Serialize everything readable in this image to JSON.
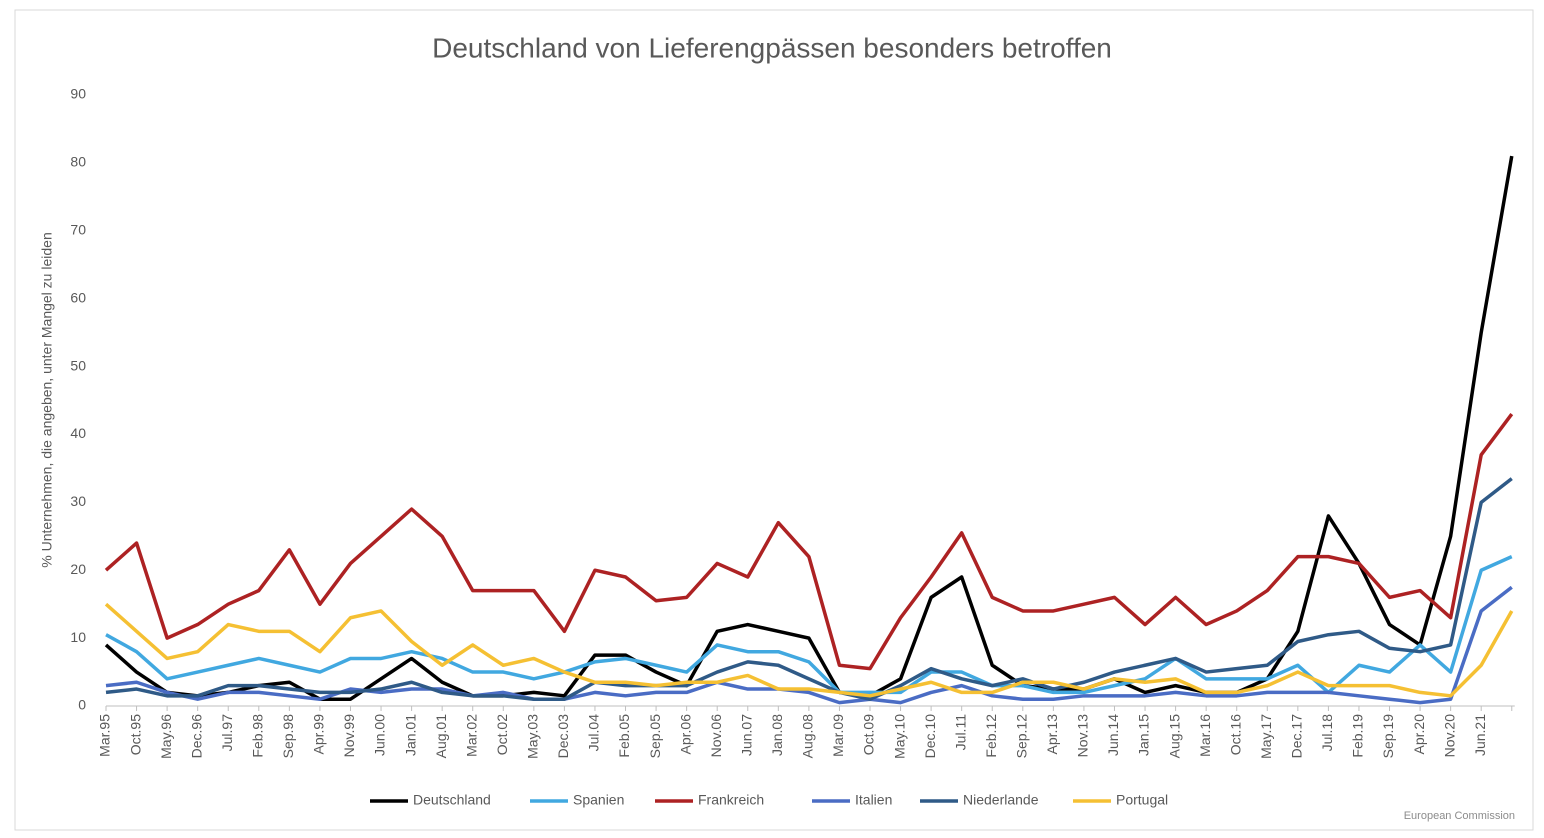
{
  "chart_data": {
    "type": "line",
    "title": "Deutschland von Lieferengpässen besonders betroffen",
    "y_label": "% Unternehmen, die angeben, unter Mangel zu leiden",
    "source": "European Commission",
    "categories": [
      "Mar.95",
      "Oct.95",
      "May.96",
      "Dec.96",
      "Jul.97",
      "Feb.98",
      "Sep.98",
      "Apr.99",
      "Nov.99",
      "Jun.00",
      "Jan.01",
      "Aug.01",
      "Mar.02",
      "Oct.02",
      "May.03",
      "Dec.03",
      "Jul.04",
      "Feb.05",
      "Sep.05",
      "Apr.06",
      "Nov.06",
      "Jun.07",
      "Jan.08",
      "Aug.08",
      "Mar.09",
      "Oct.09",
      "May.10",
      "Dec.10",
      "Jul.11",
      "Feb.12",
      "Sep.12",
      "Apr.13",
      "Nov.13",
      "Jun.14",
      "Jan.15",
      "Aug.15",
      "Mar.16",
      "Oct.16",
      "May.17",
      "Dec.17",
      "Jul.18",
      "Feb.19",
      "Sep.19",
      "Apr.20",
      "Nov.20",
      "Jun.21",
      null
    ],
    "ylim": [
      0,
      90
    ],
    "yticks": [
      0,
      10,
      20,
      30,
      40,
      50,
      60,
      70,
      80,
      90
    ],
    "legend": "bottom",
    "series": [
      {
        "name": "Deutschland",
        "color": "#000000",
        "values": [
          9,
          5,
          2,
          1.5,
          2,
          3,
          3.5,
          1,
          1,
          4,
          7,
          3.5,
          1.5,
          1.5,
          2,
          1.5,
          7.5,
          7.5,
          5,
          3,
          11,
          12,
          11,
          10,
          2,
          1.5,
          4,
          16,
          19,
          6,
          3,
          2.5,
          2.5,
          4,
          2,
          3,
          2,
          2,
          4,
          11,
          28,
          21,
          12,
          9,
          25,
          55,
          81
        ]
      },
      {
        "name": "Spanien",
        "color": "#41a8e0",
        "values": [
          10.5,
          8,
          4,
          5,
          6,
          7,
          6,
          5,
          7,
          7,
          8,
          7,
          5,
          5,
          4,
          5,
          6.5,
          7,
          6,
          5,
          9,
          8,
          8,
          6.5,
          2,
          2,
          2,
          5,
          5,
          3,
          3,
          2,
          2,
          3,
          4,
          7,
          4,
          4,
          4,
          6,
          2,
          6,
          5,
          9,
          5,
          20,
          22
        ]
      },
      {
        "name": "Frankreich",
        "color": "#ad2223",
        "values": [
          20,
          24,
          10,
          12,
          15,
          17,
          23,
          15,
          21,
          25,
          29,
          25,
          17,
          17,
          17,
          11,
          20,
          19,
          15.5,
          16,
          21,
          19,
          27,
          22,
          6,
          5.5,
          13,
          19,
          25.5,
          16,
          14,
          14,
          15,
          16,
          12,
          16,
          12,
          14,
          17,
          22,
          22,
          21,
          16,
          17,
          13,
          37,
          43
        ]
      },
      {
        "name": "Italien",
        "color": "#4a6cc4",
        "values": [
          3,
          3.5,
          2,
          1,
          2,
          2,
          1.5,
          1,
          2.5,
          2,
          2.5,
          2.5,
          1.5,
          2,
          1,
          1,
          2,
          1.5,
          2,
          2,
          3.5,
          2.5,
          2.5,
          2,
          0.5,
          1,
          0.5,
          2,
          3,
          1.5,
          1,
          1,
          1.5,
          1.5,
          1.5,
          2,
          1.5,
          1.5,
          2,
          2,
          2,
          1.5,
          1,
          0.5,
          1,
          14,
          17.5
        ]
      },
      {
        "name": "Niederlande",
        "color": "#2f5a87",
        "values": [
          2,
          2.5,
          1.5,
          1.5,
          3,
          3,
          2.5,
          2,
          2,
          2.5,
          3.5,
          2,
          1.5,
          1.5,
          1,
          1,
          3.5,
          3,
          3,
          3,
          5,
          6.5,
          6,
          4,
          2,
          1,
          3,
          5.5,
          4,
          3,
          4,
          2.5,
          3.5,
          5,
          6,
          7,
          5,
          5.5,
          6,
          9.5,
          10.5,
          11,
          8.5,
          8,
          9,
          30,
          33.5
        ]
      },
      {
        "name": "Portugal",
        "color": "#f5c033",
        "values": [
          15,
          11,
          7,
          8,
          12,
          11,
          11,
          8,
          13,
          14,
          9.5,
          6,
          9,
          6,
          7,
          5,
          3.5,
          3.5,
          3,
          3.5,
          3.5,
          4.5,
          2.5,
          2.5,
          2,
          1.5,
          2.5,
          3.5,
          2,
          2,
          3.5,
          3.5,
          2.5,
          4,
          3.5,
          4,
          2,
          2,
          3,
          5,
          3,
          3,
          3,
          2,
          1.5,
          6,
          14
        ]
      }
    ]
  }
}
